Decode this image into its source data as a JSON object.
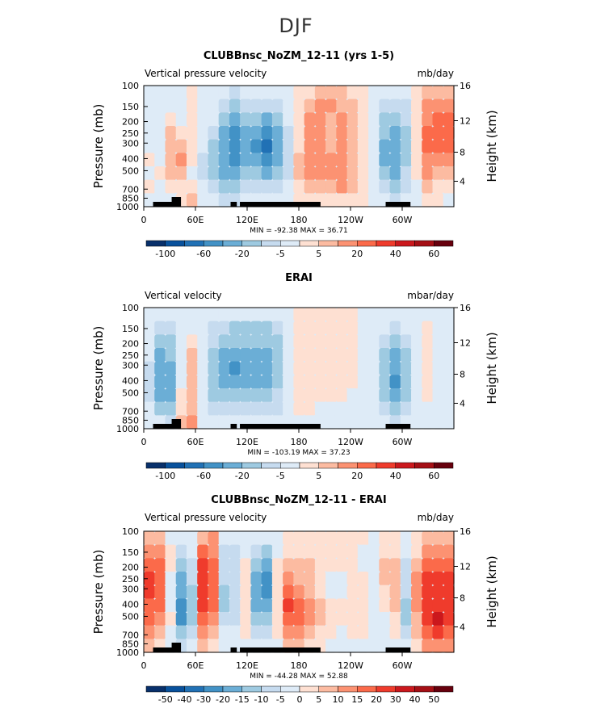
{
  "figure": {
    "title": "DJF"
  },
  "scale_standard": {
    "labels": [
      "-100",
      "-60",
      "-20",
      "-5",
      "5",
      "20",
      "40",
      "60"
    ],
    "colors": [
      "#08306b",
      "#08519c",
      "#2171b5",
      "#4292c6",
      "#6baed6",
      "#9ecae1",
      "#c6dbef",
      "#deebf7",
      "#fee0d2",
      "#fcbba1",
      "#fc9272",
      "#fb6a4a",
      "#ef3b2c",
      "#cb181d",
      "#a50f15",
      "#67000d"
    ]
  },
  "scale_diff": {
    "labels": [
      "-50",
      "-40",
      "-30",
      "-20",
      "-15",
      "-10",
      "-5",
      "0",
      "5",
      "10",
      "15",
      "20",
      "30",
      "40",
      "50"
    ],
    "colors": [
      "#08306b",
      "#08519c",
      "#2171b5",
      "#4292c6",
      "#6baed6",
      "#9ecae1",
      "#c6dbef",
      "#deebf7",
      "#fee0d2",
      "#fcbba1",
      "#fc9272",
      "#fb6a4a",
      "#ef3b2c",
      "#cb181d",
      "#a50f15",
      "#67000d"
    ]
  },
  "chart_data": [
    {
      "type": "heatmap",
      "title": "CLUBBnsc_NoZM_12-11 (yrs 1-5)",
      "left_label": "Vertical pressure velocity",
      "units": "mb/day",
      "ylabel": "Pressure (mb)",
      "ylabel_right": "Height (km)",
      "pressure_ticks": [
        "100",
        "150",
        "200",
        "250",
        "300",
        "400",
        "500",
        "700",
        "850",
        "1000"
      ],
      "height_ticks": [
        "16",
        "12",
        "8",
        "4"
      ],
      "x_ticks": [
        "0",
        "60E",
        "120E",
        "180",
        "120W",
        "60W"
      ],
      "stats": "MIN = -92.38   MAX =  36.71",
      "min": -92.38,
      "max": 36.71,
      "cells": [
        [
          0,
          0,
          0,
          0,
          1,
          0,
          -1,
          -1,
          -2,
          -1,
          -1,
          -1,
          -1,
          0,
          1,
          1,
          2,
          2,
          2,
          1,
          1,
          0,
          -1,
          -1,
          -1,
          1,
          2,
          2,
          2
        ],
        [
          0,
          -1,
          0,
          0,
          1,
          0,
          -1,
          -2,
          -3,
          -2,
          -2,
          -2,
          -2,
          -1,
          1,
          2,
          3,
          3,
          2,
          2,
          1,
          0,
          -2,
          -2,
          -2,
          1,
          3,
          3,
          3
        ],
        [
          0,
          -1,
          1,
          0,
          1,
          0,
          -1,
          -3,
          -4,
          -3,
          -3,
          -4,
          -3,
          -1,
          1,
          3,
          3,
          2,
          3,
          2,
          1,
          0,
          -3,
          -3,
          -2,
          1,
          3,
          4,
          4
        ],
        [
          0,
          -1,
          2,
          1,
          1,
          -1,
          -2,
          -4,
          -5,
          -4,
          -4,
          -5,
          -4,
          -2,
          1,
          3,
          3,
          2,
          3,
          2,
          1,
          0,
          -3,
          -4,
          -3,
          1,
          4,
          4,
          4
        ],
        [
          0,
          0,
          2,
          2,
          1,
          -1,
          -3,
          -4,
          -5,
          -4,
          -5,
          -6,
          -4,
          -2,
          1,
          3,
          3,
          2,
          3,
          2,
          1,
          0,
          -4,
          -4,
          -3,
          1,
          4,
          4,
          4
        ],
        [
          1,
          0,
          2,
          3,
          1,
          -2,
          -3,
          -4,
          -5,
          -4,
          -4,
          -5,
          -4,
          -2,
          2,
          3,
          3,
          3,
          3,
          2,
          1,
          0,
          -4,
          -4,
          -3,
          1,
          3,
          3,
          3
        ],
        [
          0,
          1,
          2,
          2,
          0,
          -2,
          -3,
          -4,
          -4,
          -3,
          -3,
          -4,
          -3,
          -2,
          2,
          3,
          3,
          3,
          3,
          2,
          1,
          0,
          -3,
          -4,
          -2,
          1,
          3,
          2,
          2
        ],
        [
          1,
          0,
          1,
          1,
          1,
          -1,
          -2,
          -3,
          -3,
          -2,
          -2,
          -2,
          -2,
          -1,
          1,
          2,
          2,
          2,
          3,
          2,
          1,
          0,
          -2,
          -3,
          -2,
          0,
          2,
          1,
          1
        ],
        [
          0,
          0,
          0,
          1,
          2,
          -1,
          -1,
          -2,
          -2,
          -1,
          -1,
          -1,
          -1,
          -1,
          1,
          1,
          1,
          1,
          1,
          1,
          1,
          0,
          -1,
          -2,
          -1,
          0,
          1,
          1,
          0
        ]
      ]
    },
    {
      "type": "heatmap",
      "title": "ERAI",
      "left_label": "Vertical velocity",
      "units": "mbar/day",
      "ylabel": "Pressure (mb)",
      "ylabel_right": "Height (km)",
      "pressure_ticks": [
        "100",
        "150",
        "200",
        "250",
        "300",
        "400",
        "500",
        "700",
        "850",
        "1000"
      ],
      "height_ticks": [
        "16",
        "12",
        "8",
        "4"
      ],
      "x_ticks": [
        "0",
        "60E",
        "120E",
        "180",
        "120W",
        "60W"
      ],
      "stats": "MIN = -103.19   MAX =  37.23",
      "min": -103.19,
      "max": 37.23,
      "cells": [
        [
          -1,
          -1,
          -1,
          -1,
          0,
          -1,
          -1,
          -1,
          -1,
          -1,
          -1,
          -1,
          -1,
          0,
          1,
          1,
          1,
          1,
          1,
          1,
          0,
          0,
          -1,
          -1,
          -1,
          0,
          0,
          0,
          -1
        ],
        [
          -1,
          -2,
          -2,
          -1,
          0,
          -1,
          -2,
          -2,
          -3,
          -3,
          -3,
          -3,
          -2,
          0,
          1,
          1,
          1,
          1,
          1,
          1,
          0,
          0,
          -1,
          -2,
          -1,
          0,
          1,
          0,
          -1
        ],
        [
          -1,
          -3,
          -3,
          -1,
          1,
          -1,
          -2,
          -3,
          -3,
          -3,
          -3,
          -3,
          -3,
          0,
          1,
          1,
          1,
          1,
          1,
          1,
          0,
          0,
          -2,
          -3,
          -2,
          0,
          1,
          0,
          -1
        ],
        [
          -1,
          -4,
          -3,
          -1,
          2,
          -1,
          -3,
          -4,
          -4,
          -4,
          -4,
          -4,
          -3,
          -1,
          1,
          1,
          1,
          1,
          1,
          1,
          0,
          0,
          -3,
          -4,
          -3,
          0,
          1,
          0,
          -1
        ],
        [
          -2,
          -4,
          -4,
          0,
          2,
          -1,
          -3,
          -4,
          -5,
          -4,
          -4,
          -4,
          -3,
          -1,
          1,
          1,
          1,
          1,
          1,
          1,
          0,
          0,
          -3,
          -4,
          -3,
          0,
          1,
          0,
          -1
        ],
        [
          -2,
          -4,
          -4,
          0,
          2,
          -1,
          -3,
          -4,
          -4,
          -4,
          -4,
          -4,
          -3,
          -1,
          1,
          1,
          1,
          1,
          1,
          1,
          0,
          0,
          -3,
          -5,
          -3,
          0,
          1,
          0,
          -1
        ],
        [
          -2,
          -4,
          -4,
          1,
          2,
          -1,
          -3,
          -3,
          -3,
          -3,
          -3,
          -3,
          -2,
          -1,
          1,
          1,
          1,
          1,
          1,
          0,
          0,
          0,
          -3,
          -4,
          -3,
          -1,
          1,
          0,
          -1
        ],
        [
          -1,
          -3,
          -3,
          1,
          2,
          -1,
          -2,
          -2,
          -2,
          -2,
          -2,
          -2,
          -2,
          -1,
          1,
          1,
          0,
          0,
          0,
          0,
          0,
          0,
          -2,
          -3,
          -2,
          -1,
          0,
          0,
          -1
        ],
        [
          0,
          -1,
          -2,
          2,
          3,
          -1,
          -1,
          -1,
          -1,
          -1,
          -1,
          -1,
          -1,
          0,
          0,
          0,
          0,
          0,
          0,
          0,
          0,
          0,
          -1,
          -2,
          -1,
          -1,
          -1,
          0,
          -1
        ]
      ]
    },
    {
      "type": "heatmap",
      "title": "CLUBBnsc_NoZM_12-11 - ERAI",
      "left_label": "Vertical pressure velocity",
      "units": "mb/day",
      "ylabel": "Pressure (mb)",
      "ylabel_right": "Height (km)",
      "pressure_ticks": [
        "100",
        "150",
        "200",
        "250",
        "300",
        "400",
        "500",
        "700",
        "850",
        "1000"
      ],
      "height_ticks": [
        "16",
        "12",
        "8",
        "4"
      ],
      "x_ticks": [
        "0",
        "60E",
        "120E",
        "180",
        "120W",
        "60W"
      ],
      "stats": "MIN = -44.28   MAX =  52.88",
      "min": -44.28,
      "max": 52.88,
      "cells": [
        [
          2,
          2,
          0,
          -1,
          0,
          2,
          3,
          -1,
          -1,
          0,
          -1,
          -1,
          0,
          1,
          1,
          1,
          1,
          1,
          1,
          1,
          1,
          0,
          1,
          1,
          0,
          1,
          2,
          2,
          2
        ],
        [
          3,
          3,
          1,
          -2,
          -1,
          4,
          3,
          -2,
          -2,
          0,
          -2,
          -3,
          0,
          1,
          1,
          1,
          1,
          1,
          1,
          1,
          0,
          0,
          1,
          1,
          -1,
          1,
          3,
          3,
          3
        ],
        [
          4,
          4,
          1,
          -3,
          -2,
          5,
          4,
          -2,
          -2,
          1,
          -3,
          -4,
          1,
          2,
          2,
          2,
          1,
          1,
          1,
          1,
          0,
          0,
          2,
          2,
          -2,
          2,
          4,
          4,
          4
        ],
        [
          5,
          4,
          0,
          -4,
          -2,
          5,
          4,
          -2,
          -2,
          1,
          -4,
          -5,
          1,
          3,
          2,
          2,
          1,
          0,
          0,
          1,
          1,
          0,
          2,
          2,
          -2,
          3,
          5,
          5,
          5
        ],
        [
          5,
          4,
          0,
          -4,
          -3,
          5,
          4,
          -3,
          -2,
          1,
          -4,
          -5,
          1,
          4,
          3,
          2,
          1,
          -1,
          0,
          1,
          1,
          0,
          1,
          2,
          -2,
          3,
          5,
          5,
          5
        ],
        [
          4,
          4,
          0,
          -5,
          -3,
          5,
          4,
          -3,
          -2,
          1,
          -4,
          -4,
          1,
          5,
          4,
          3,
          2,
          1,
          1,
          1,
          1,
          0,
          1,
          2,
          -3,
          3,
          5,
          5,
          5
        ],
        [
          4,
          3,
          1,
          -5,
          -3,
          4,
          3,
          -2,
          -2,
          1,
          -3,
          -3,
          1,
          4,
          4,
          3,
          2,
          1,
          1,
          1,
          1,
          0,
          0,
          1,
          -3,
          2,
          5,
          6,
          5
        ],
        [
          3,
          2,
          0,
          -3,
          -2,
          3,
          2,
          -1,
          -1,
          1,
          -2,
          -2,
          1,
          3,
          3,
          2,
          1,
          1,
          0,
          1,
          1,
          0,
          -1,
          1,
          -2,
          2,
          4,
          5,
          4
        ],
        [
          2,
          1,
          -1,
          -2,
          -1,
          2,
          1,
          0,
          -1,
          0,
          -1,
          -1,
          0,
          2,
          2,
          1,
          1,
          0,
          0,
          0,
          0,
          0,
          -1,
          0,
          -1,
          1,
          3,
          3,
          3
        ]
      ]
    }
  ]
}
